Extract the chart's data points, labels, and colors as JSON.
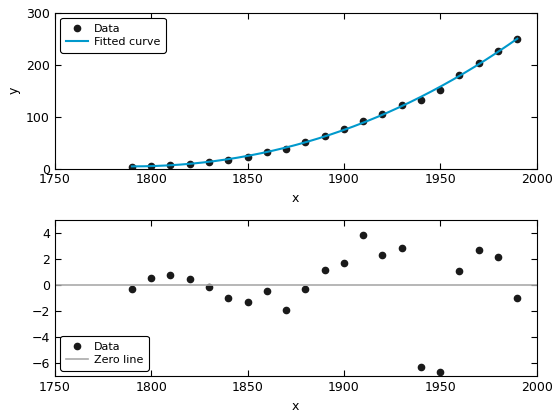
{
  "x_data": [
    1790,
    1800,
    1810,
    1820,
    1830,
    1840,
    1850,
    1860,
    1870,
    1880,
    1890,
    1900,
    1910,
    1920,
    1930,
    1940,
    1950,
    1960,
    1970,
    1980,
    1990
  ],
  "y_data": [
    3.9,
    5.3,
    7.2,
    9.6,
    12.9,
    17.1,
    23.1,
    31.4,
    38.6,
    50.2,
    62.9,
    76.0,
    92.0,
    105.7,
    122.8,
    131.7,
    150.7,
    179.3,
    203.3,
    226.5,
    248.7
  ],
  "poly_degree": 3,
  "xlabel": "x",
  "ylabel": "y",
  "ylim1": [
    0,
    300
  ],
  "ylim2": [
    -7,
    5
  ],
  "xlim": [
    1750,
    2000
  ],
  "data_color": "#1a1a1a",
  "fit_color": "#0099cc",
  "zero_color": "#aaaaaa",
  "legend1_loc": "upper left",
  "legend2_loc": "lower left",
  "legend1_labels": [
    "Data",
    "Fitted curve"
  ],
  "legend2_labels": [
    "Data",
    "Zero line"
  ],
  "xticks": [
    1750,
    1800,
    1850,
    1900,
    1950,
    2000
  ],
  "yticks1": [
    0,
    100,
    200,
    300
  ],
  "yticks2": [
    -6,
    -4,
    -2,
    0,
    2,
    4
  ]
}
